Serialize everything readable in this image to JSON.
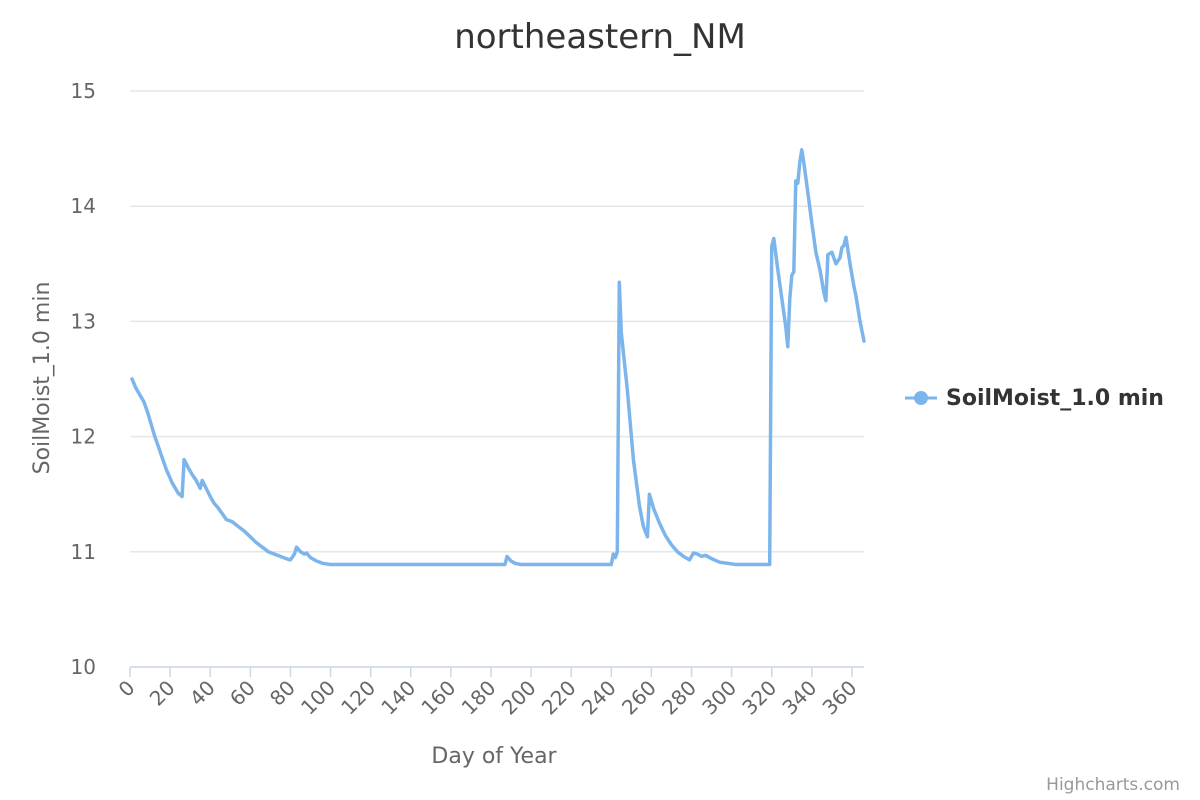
{
  "chart_data": {
    "type": "line",
    "title": "northeastern_NM",
    "xlabel": "Day of Year",
    "ylabel": "SoilMoist_1.0 min",
    "xlim": [
      0,
      366
    ],
    "ylim": [
      10,
      15
    ],
    "x_ticks": [
      0,
      20,
      40,
      60,
      80,
      100,
      120,
      140,
      160,
      180,
      200,
      220,
      240,
      260,
      280,
      300,
      320,
      340,
      360
    ],
    "y_ticks": [
      10,
      11,
      12,
      13,
      14,
      15
    ],
    "grid": true,
    "legend_position": "right",
    "credits": "Highcharts.com",
    "series": [
      {
        "name": "SoilMoist_1.0 min",
        "color": "#7cb5ec",
        "points": [
          [
            1,
            12.5
          ],
          [
            3,
            12.42
          ],
          [
            5,
            12.36
          ],
          [
            7,
            12.3
          ],
          [
            9,
            12.2
          ],
          [
            12,
            12.02
          ],
          [
            14,
            11.92
          ],
          [
            18,
            11.72
          ],
          [
            21,
            11.6
          ],
          [
            24,
            11.51
          ],
          [
            26,
            11.48
          ],
          [
            27,
            11.8
          ],
          [
            29,
            11.73
          ],
          [
            31,
            11.67
          ],
          [
            33,
            11.62
          ],
          [
            35,
            11.55
          ],
          [
            36,
            11.62
          ],
          [
            38,
            11.55
          ],
          [
            40,
            11.48
          ],
          [
            42,
            11.42
          ],
          [
            44,
            11.38
          ],
          [
            46,
            11.33
          ],
          [
            48,
            11.28
          ],
          [
            51,
            11.26
          ],
          [
            54,
            11.22
          ],
          [
            57,
            11.18
          ],
          [
            60,
            11.13
          ],
          [
            63,
            11.08
          ],
          [
            66,
            11.04
          ],
          [
            69,
            11.0
          ],
          [
            72,
            10.98
          ],
          [
            75,
            10.96
          ],
          [
            78,
            10.94
          ],
          [
            80,
            10.93
          ],
          [
            82,
            10.98
          ],
          [
            83,
            11.04
          ],
          [
            85,
            11.0
          ],
          [
            87,
            10.98
          ],
          [
            88,
            10.99
          ],
          [
            90,
            10.95
          ],
          [
            93,
            10.92
          ],
          [
            96,
            10.9
          ],
          [
            100,
            10.89
          ],
          [
            140,
            10.89
          ],
          [
            187,
            10.89
          ],
          [
            188,
            10.96
          ],
          [
            190,
            10.92
          ],
          [
            192,
            10.9
          ],
          [
            195,
            10.89
          ],
          [
            238,
            10.89
          ],
          [
            240,
            10.89
          ],
          [
            241,
            10.98
          ],
          [
            242,
            10.95
          ],
          [
            243,
            11.0
          ],
          [
            244,
            13.34
          ],
          [
            245,
            12.9
          ],
          [
            248,
            12.4
          ],
          [
            251,
            11.8
          ],
          [
            254,
            11.4
          ],
          [
            256,
            11.22
          ],
          [
            258,
            11.13
          ],
          [
            259,
            11.5
          ],
          [
            261,
            11.38
          ],
          [
            264,
            11.25
          ],
          [
            267,
            11.14
          ],
          [
            270,
            11.06
          ],
          [
            273,
            11.0
          ],
          [
            276,
            10.96
          ],
          [
            279,
            10.93
          ],
          [
            281,
            10.99
          ],
          [
            283,
            10.98
          ],
          [
            285,
            10.96
          ],
          [
            287,
            10.97
          ],
          [
            290,
            10.94
          ],
          [
            294,
            10.91
          ],
          [
            298,
            10.9
          ],
          [
            302,
            10.89
          ],
          [
            319,
            10.89
          ],
          [
            320,
            13.65
          ],
          [
            321,
            13.72
          ],
          [
            323,
            13.45
          ],
          [
            325,
            13.2
          ],
          [
            327,
            12.95
          ],
          [
            328,
            12.78
          ],
          [
            329,
            13.2
          ],
          [
            330,
            13.4
          ],
          [
            331,
            13.43
          ],
          [
            332,
            14.22
          ],
          [
            333,
            14.2
          ],
          [
            334,
            14.38
          ],
          [
            335,
            14.49
          ],
          [
            336,
            14.38
          ],
          [
            338,
            14.12
          ],
          [
            340,
            13.85
          ],
          [
            342,
            13.6
          ],
          [
            344,
            13.45
          ],
          [
            346,
            13.25
          ],
          [
            347,
            13.18
          ],
          [
            348,
            13.58
          ],
          [
            350,
            13.6
          ],
          [
            352,
            13.5
          ],
          [
            354,
            13.55
          ],
          [
            355,
            13.64
          ],
          [
            356,
            13.66
          ],
          [
            357,
            13.73
          ],
          [
            359,
            13.5
          ],
          [
            361,
            13.3
          ],
          [
            362,
            13.22
          ],
          [
            364,
            13.0
          ],
          [
            366,
            12.83
          ]
        ]
      }
    ]
  }
}
